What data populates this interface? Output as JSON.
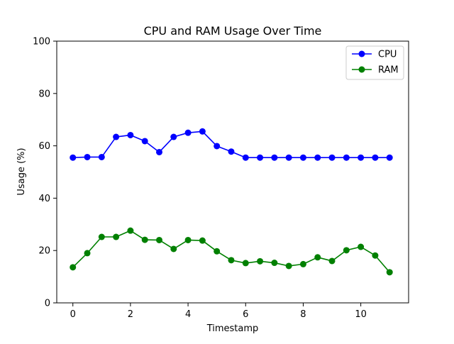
{
  "chart_data": {
    "type": "line",
    "title": "CPU and RAM Usage Over Time",
    "xlabel": "Timestamp",
    "ylabel": "Usage (%)",
    "xlim": [
      -0.56,
      11.66
    ],
    "ylim": [
      0,
      100
    ],
    "xticks": [
      0,
      2,
      4,
      6,
      8,
      10
    ],
    "yticks": [
      0,
      20,
      40,
      60,
      80,
      100
    ],
    "grid": false,
    "legend_position": "top-right",
    "x": [
      0,
      0.5,
      1,
      1.5,
      2,
      2.5,
      3,
      3.5,
      4,
      4.5,
      5,
      5.5,
      6,
      6.5,
      7,
      7.5,
      8,
      8.5,
      9,
      9.5,
      10,
      10.5,
      11
    ],
    "series": [
      {
        "name": "CPU",
        "color": "#0000ff",
        "values": [
          55.5,
          55.7,
          55.7,
          63.4,
          64.1,
          61.8,
          57.6,
          63.4,
          65.0,
          65.5,
          59.9,
          57.8,
          55.5,
          55.5,
          55.5,
          55.5,
          55.5,
          55.5,
          55.5,
          55.5,
          55.5,
          55.5,
          55.5
        ]
      },
      {
        "name": "RAM",
        "color": "#008000",
        "values": [
          13.6,
          19.0,
          25.2,
          25.2,
          27.6,
          24.1,
          24.0,
          20.6,
          24.0,
          23.8,
          19.7,
          16.3,
          15.2,
          15.9,
          15.3,
          14.1,
          14.8,
          17.4,
          16.0,
          20.1,
          21.4,
          18.1,
          11.7
        ]
      }
    ]
  }
}
